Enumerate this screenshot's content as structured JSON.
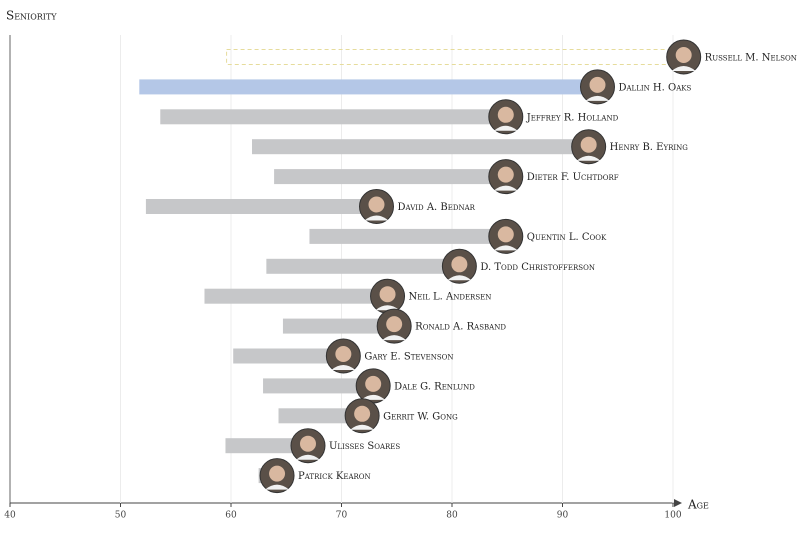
{
  "chart_data": {
    "type": "range-bar",
    "y_label": "Seniority",
    "x_label": "Age",
    "categories": [
      "Russell M. Nelson",
      "Dallin H. Oaks",
      "Jeffrey R. Holland",
      "Henry B. Eyring",
      "Dieter F. Uchtdorf",
      "David A. Bednar",
      "Quentin L. Cook",
      "D. Todd Christofferson",
      "Neil L. Andersen",
      "Ronald A. Rasband",
      "Gary E. Stevenson",
      "Dale G. Renlund",
      "Gerrit W. Gong",
      "Ulisses Soares",
      "Patrick Kearon"
    ],
    "start": [
      59.6,
      51.7,
      53.6,
      61.9,
      63.9,
      52.3,
      67.1,
      63.2,
      57.6,
      64.7,
      60.2,
      62.9,
      64.3,
      59.5,
      62.5
    ],
    "values": [
      99.7,
      91.9,
      83.6,
      91.1,
      83.6,
      71.9,
      83.6,
      79.4,
      72.9,
      73.5,
      68.9,
      71.6,
      70.6,
      65.7,
      62.9
    ],
    "bar_styles": [
      "dashed",
      "highlight",
      "solid",
      "solid",
      "solid",
      "solid",
      "solid",
      "solid",
      "solid",
      "solid",
      "solid",
      "solid",
      "solid",
      "solid",
      "solid"
    ],
    "color": "#c6c7c9",
    "highlight_color": "#b4c7e7",
    "dashed_color": "#e6dc9c",
    "xlim": [
      40,
      100
    ],
    "xticks": [
      40,
      50,
      60,
      70,
      80,
      90,
      100
    ],
    "grid": true
  }
}
